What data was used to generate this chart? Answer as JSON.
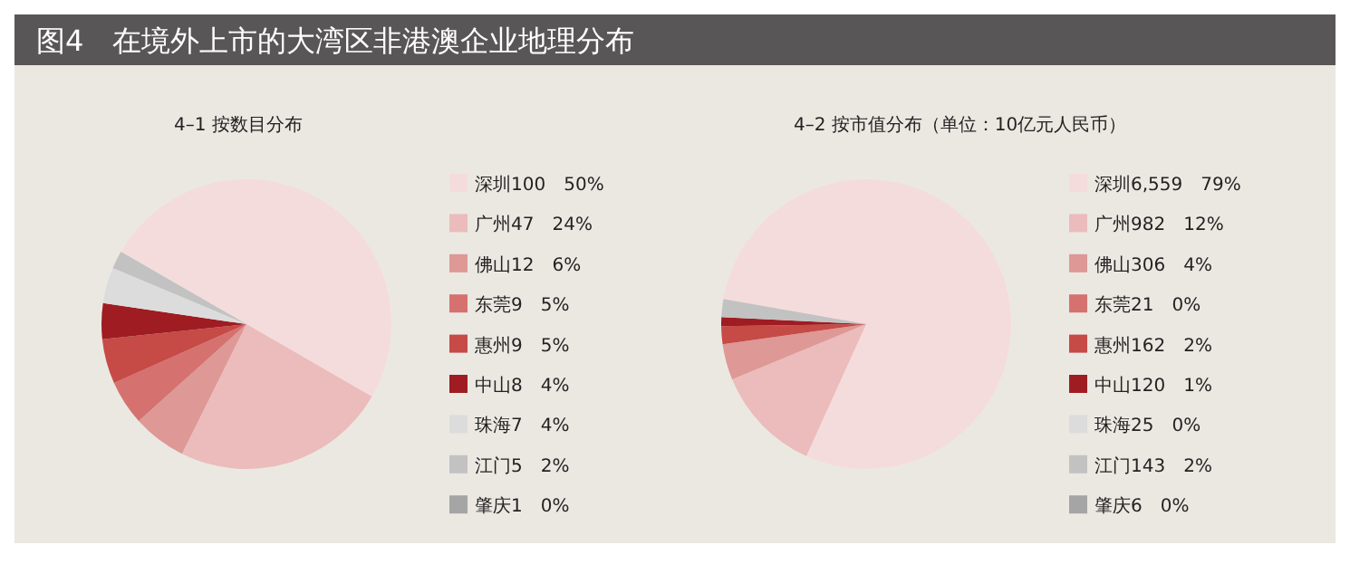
{
  "chart_data": [
    {
      "type": "pie",
      "title": "图4　在境外上市的大湾区非港澳企业地理分布",
      "subtitle": "4–1  按数目分布",
      "categories": [
        "深圳100",
        "广州47",
        "佛山12",
        "东莞9",
        "惠州9",
        "中山8",
        "珠海7",
        "江门5",
        "肇庆1"
      ],
      "values": [
        50,
        24,
        6,
        5,
        5,
        4,
        4,
        2,
        0
      ],
      "value_labels": [
        "50%",
        "24%",
        "6%",
        "5%",
        "5%",
        "4%",
        "4%",
        "2%",
        "0%"
      ],
      "colors": [
        "#f5dcdc",
        "#ebbcbb",
        "#de9896",
        "#d5716f",
        "#c64a46",
        "#9e1c22",
        "#dcdcdc",
        "#c2c2c2",
        "#a5a5a5"
      ],
      "legend": "right"
    },
    {
      "type": "pie",
      "title": "4–2  按市值分布（单位：10亿元人民币）",
      "categories": [
        "深圳6,559",
        "广州982",
        "佛山306",
        "东莞21",
        "惠州162",
        "中山120",
        "珠海25",
        "江门143",
        "肇庆6"
      ],
      "values": [
        79,
        12,
        4,
        0,
        2,
        1,
        0,
        2,
        0
      ],
      "value_labels": [
        "79%",
        "12%",
        "4%",
        "0%",
        "2%",
        "1%",
        "0%",
        "2%",
        "0%"
      ],
      "colors": [
        "#f5dcdc",
        "#ebbcbb",
        "#de9896",
        "#d5716f",
        "#c64a46",
        "#9e1c22",
        "#dcdcdc",
        "#c2c2c2",
        "#a5a5a5"
      ],
      "legend": "right"
    }
  ]
}
